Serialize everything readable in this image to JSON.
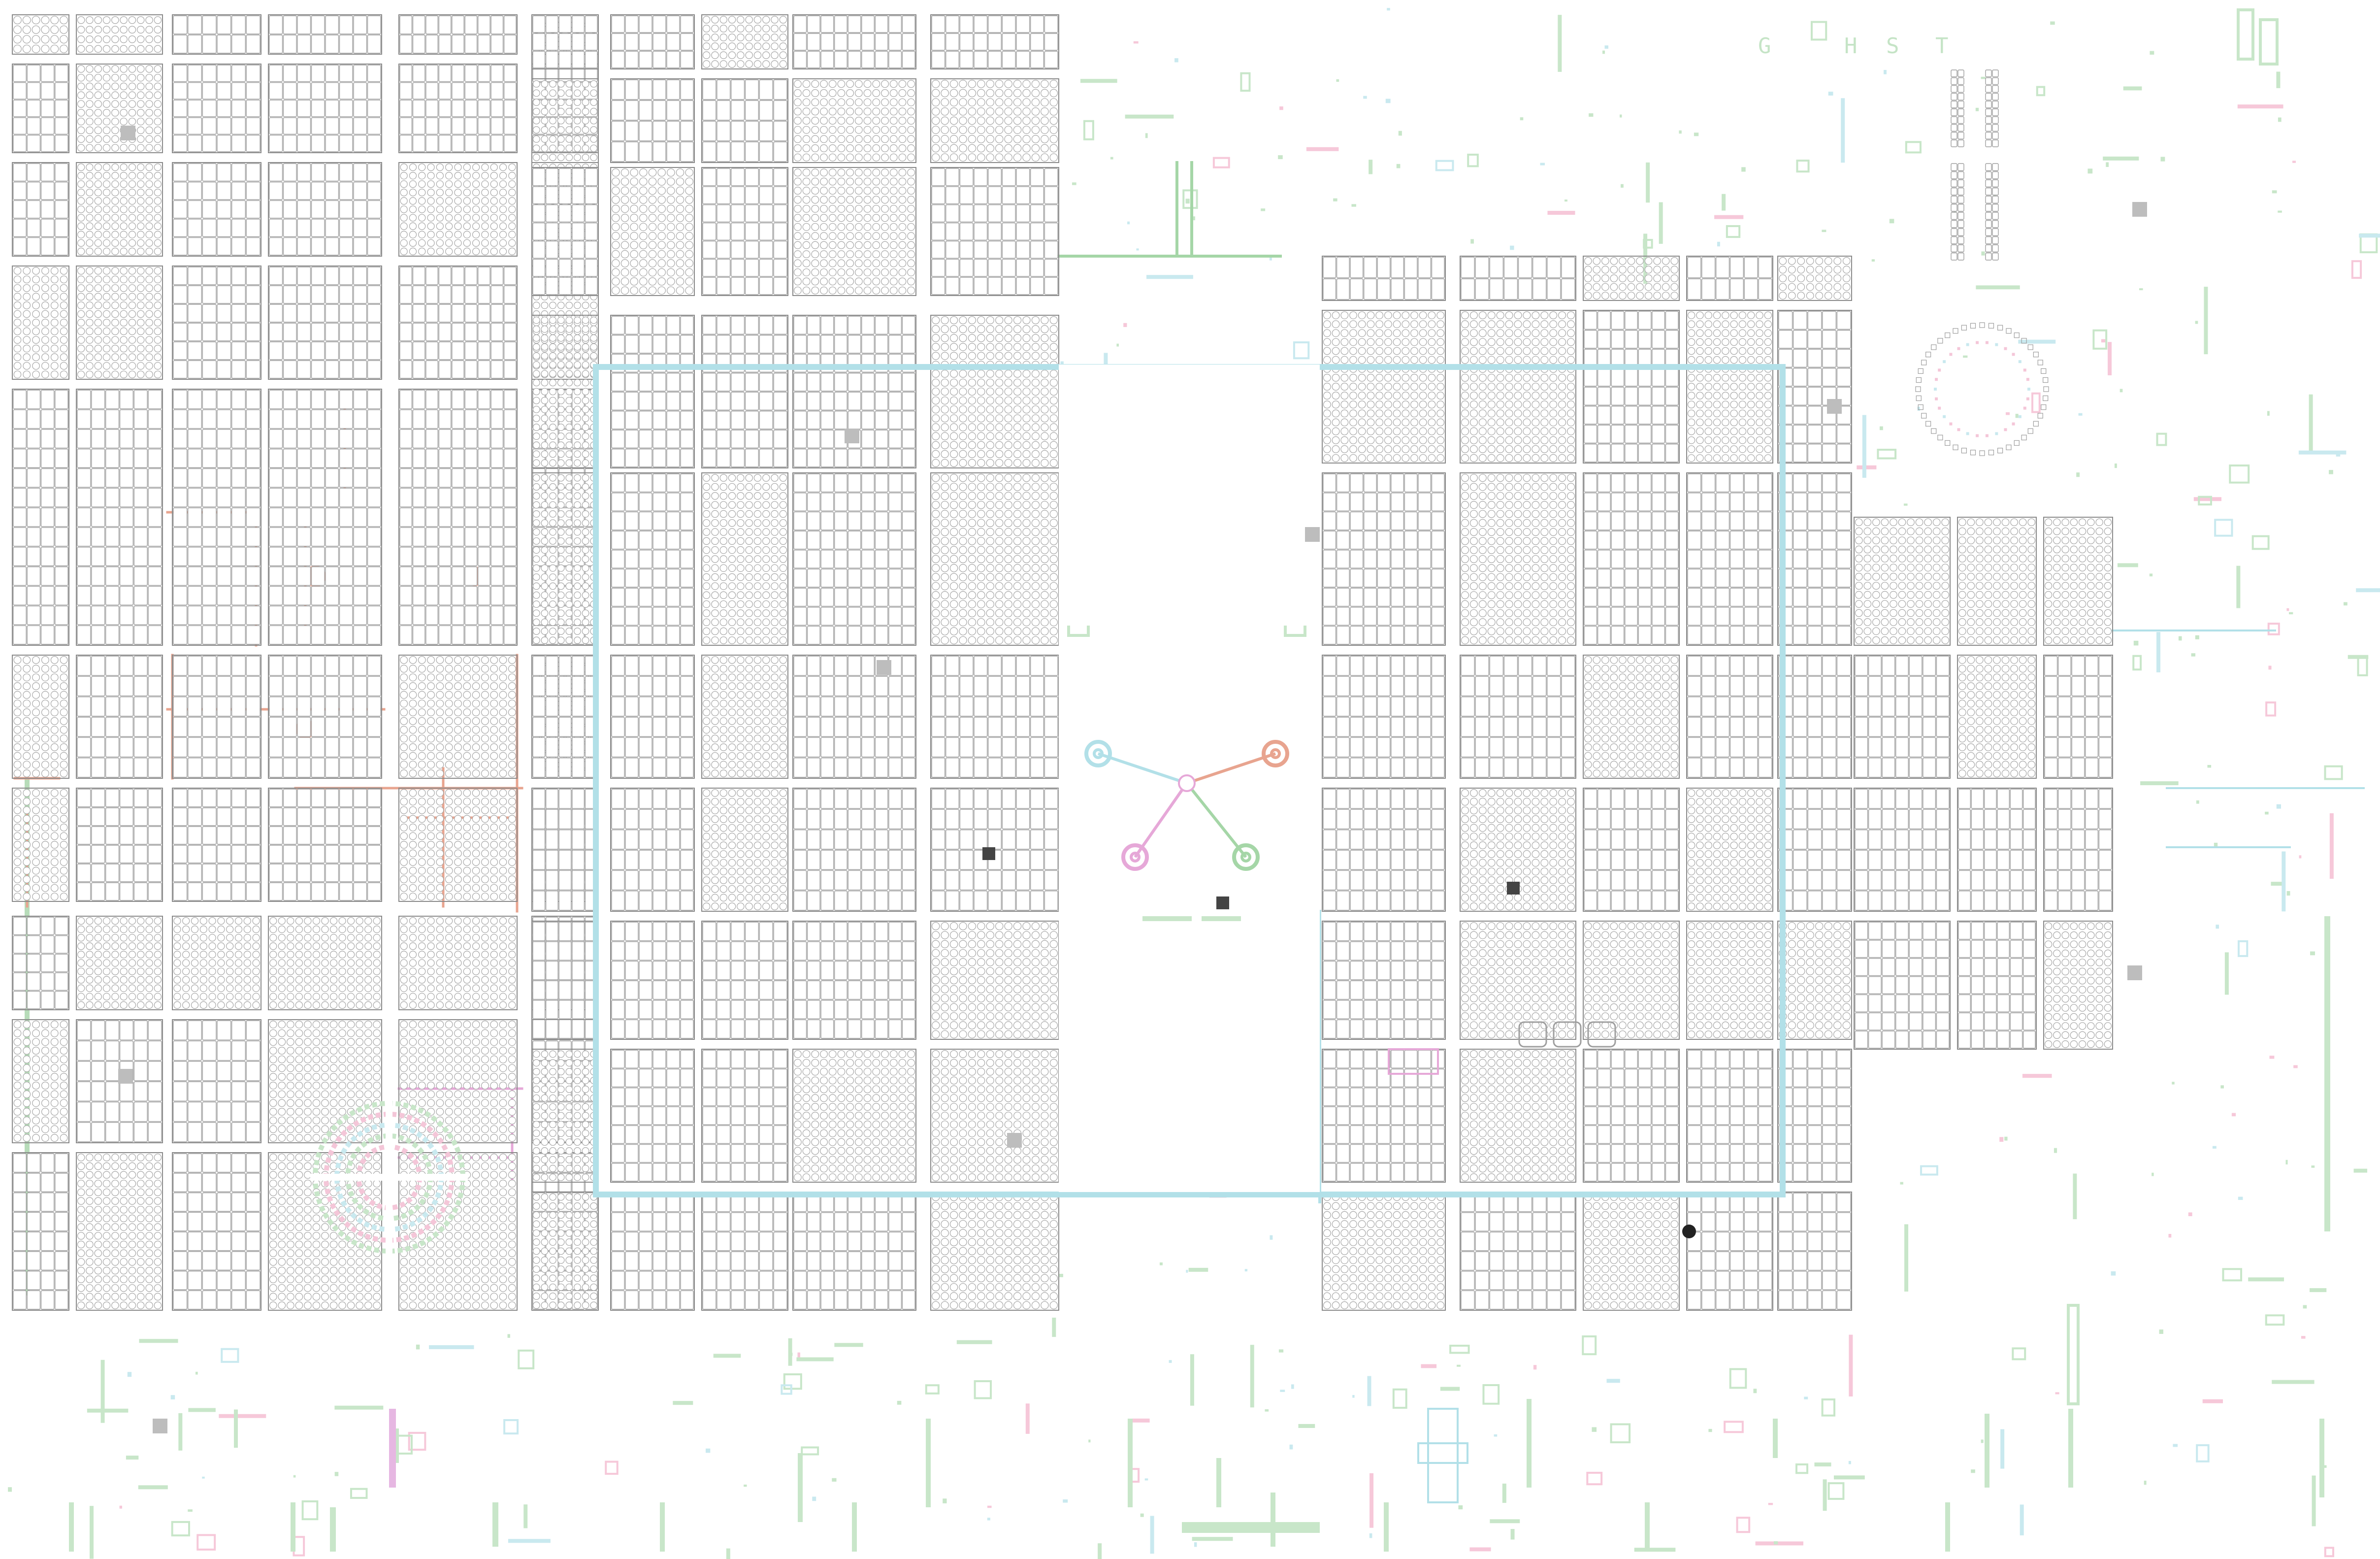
{
  "map": {
    "title": "G H S T",
    "title_letters": [
      "G",
      "H",
      "S",
      "T"
    ],
    "colors": {
      "background": "#ffffff",
      "lot_stroke": "#9e9e9e",
      "street_green": "#a5d6a7",
      "canal_blue": "#b2e0e8",
      "road_salmon": "#e8a48f",
      "path_pink": "#e6a8d8",
      "deco_green": "#c8e6c9",
      "landmark_gray": "#bdbdbd"
    },
    "central_plaza": {
      "hub_arms": [
        "blue-arm",
        "salmon-arm",
        "pink-arm",
        "green-arm"
      ]
    }
  }
}
